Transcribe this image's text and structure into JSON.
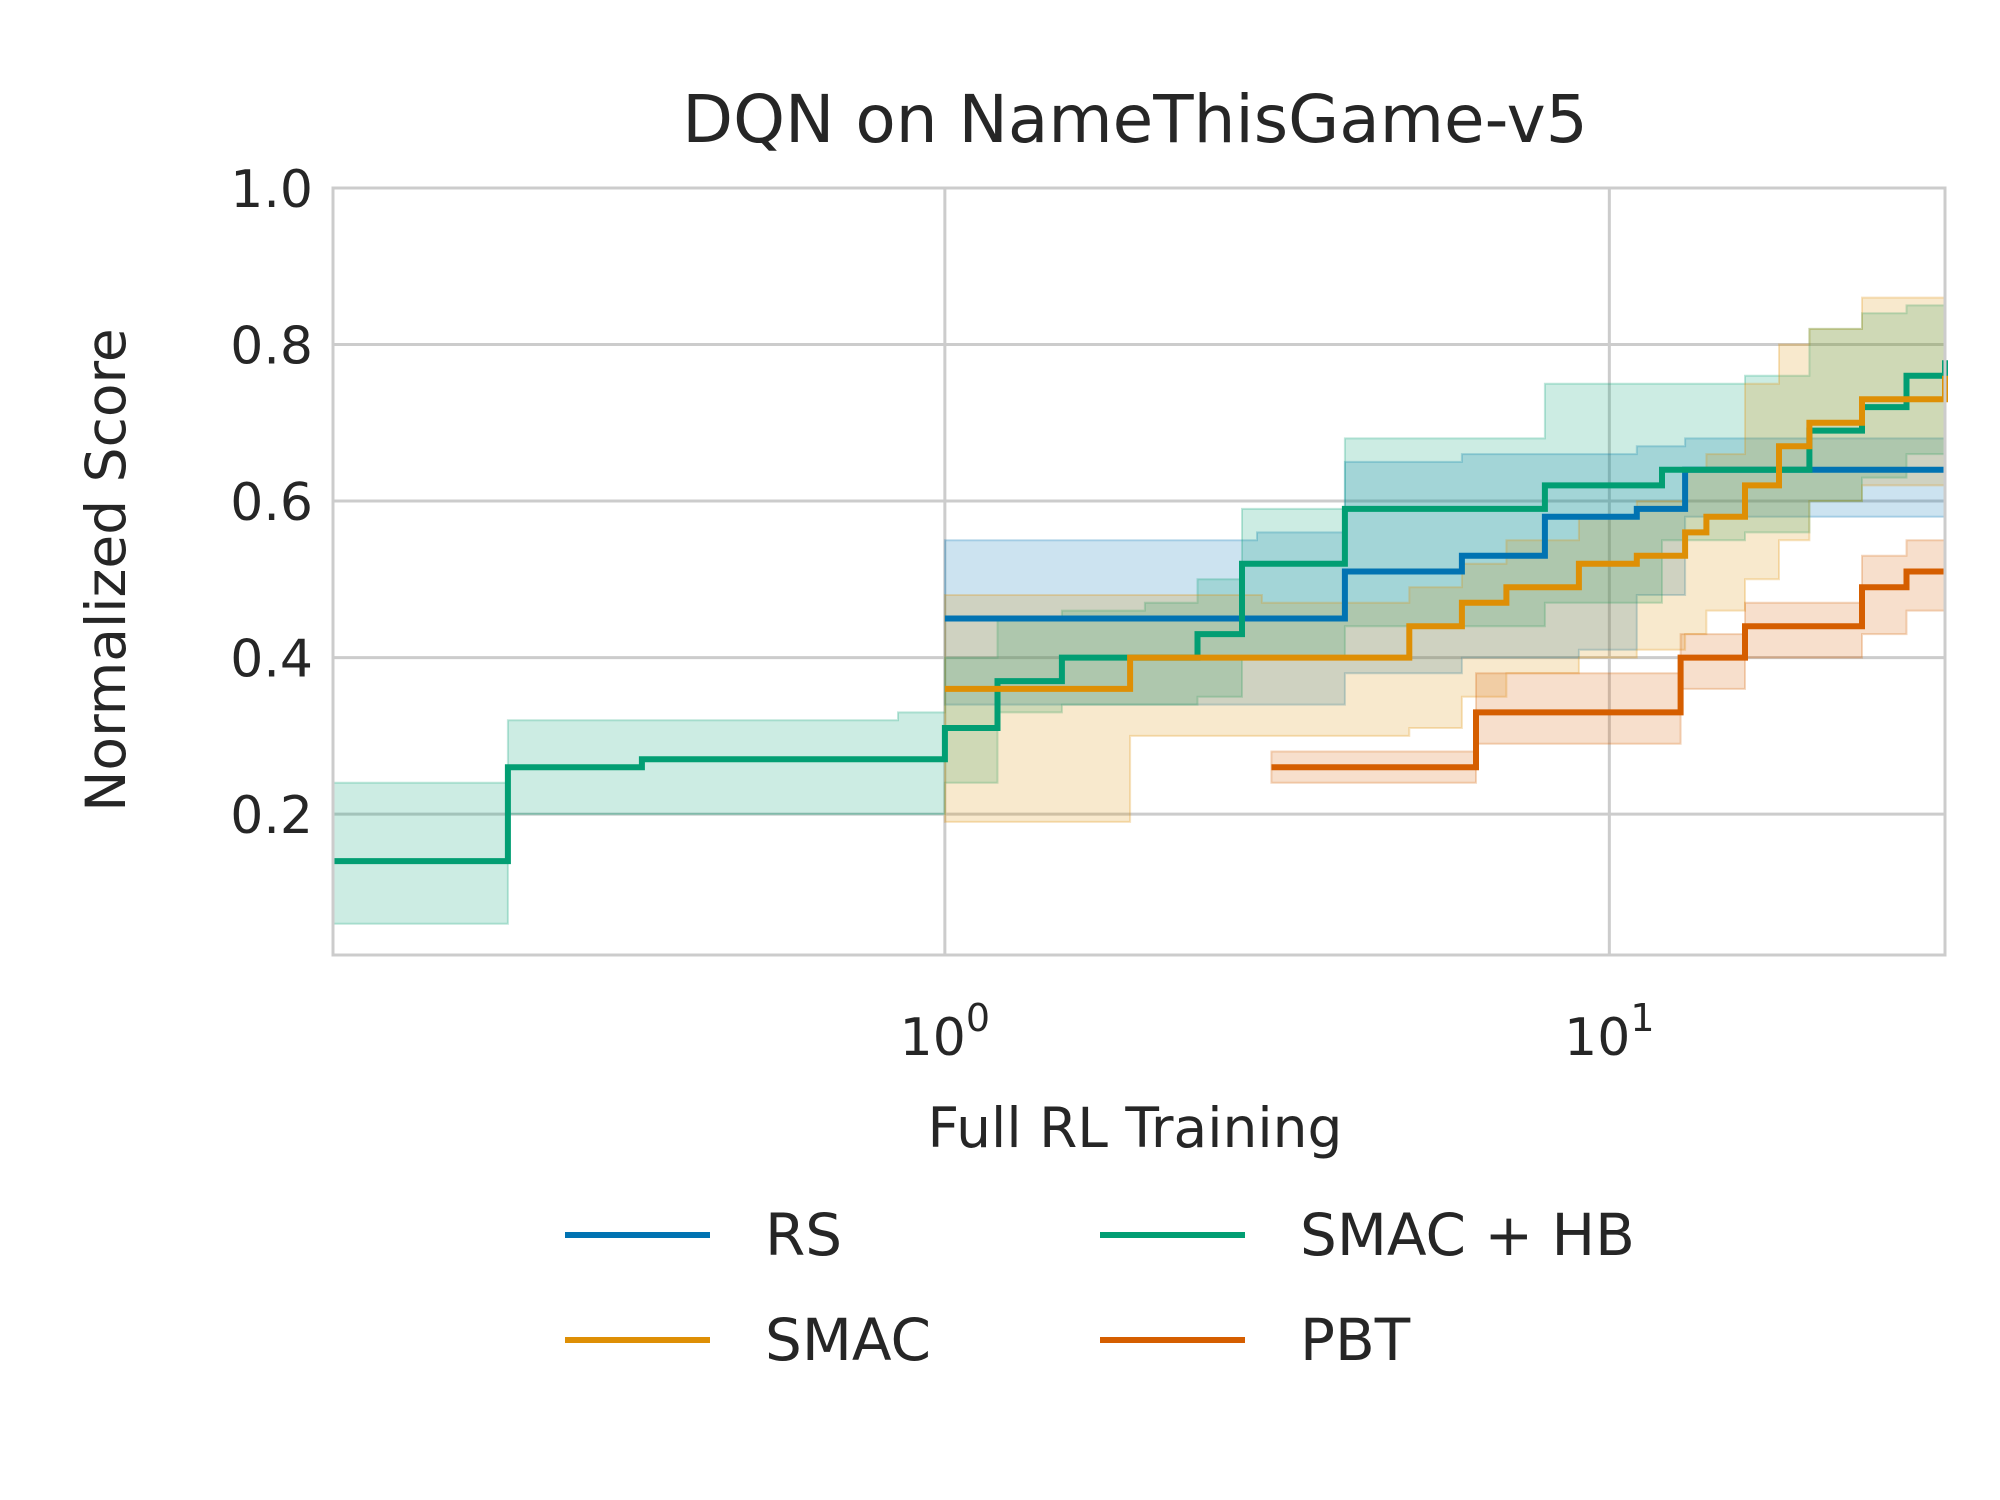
{
  "chart_data": {
    "type": "line",
    "title": "DQN on NameThisGame-v5",
    "xlabel": "Full RL Training",
    "ylabel": "Normalized Score",
    "xscale": "log",
    "xlim": [
      0.12,
      32
    ],
    "ylim": [
      0.02,
      1.0
    ],
    "grid": true,
    "legend_position": "below",
    "y_ticks": [
      "0.2",
      "0.4",
      "0.6",
      "0.8",
      "1.0"
    ],
    "y_tick_values": [
      0.2,
      0.4,
      0.6,
      0.8,
      1.0
    ],
    "x_ticks": [
      {
        "value": 1,
        "base": "10",
        "exp": "0"
      },
      {
        "value": 10,
        "base": "10",
        "exp": "1"
      }
    ],
    "series": [
      {
        "name": "RS",
        "color": "#0173b2",
        "x": [
          1.0,
          2.95,
          4.0,
          6.0,
          8.0,
          9.0,
          11.0,
          13.0,
          32
        ],
        "y": [
          0.45,
          0.45,
          0.51,
          0.53,
          0.58,
          0.58,
          0.59,
          0.64,
          0.64
        ],
        "band_low": [
          0.34,
          0.34,
          0.38,
          0.4,
          0.4,
          0.41,
          0.48,
          0.58,
          0.6
        ],
        "band_high": [
          0.55,
          0.56,
          0.65,
          0.66,
          0.66,
          0.66,
          0.67,
          0.68,
          0.68
        ]
      },
      {
        "name": "SMAC + HB",
        "color": "#029e73",
        "x": [
          0.12,
          0.22,
          0.35,
          0.6,
          0.85,
          1.0,
          1.2,
          1.5,
          2.0,
          2.4,
          2.8,
          4.0,
          8.0,
          12.0,
          16.0,
          20.0,
          24.0,
          28.0,
          32
        ],
        "y": [
          0.14,
          0.26,
          0.27,
          0.27,
          0.27,
          0.31,
          0.37,
          0.4,
          0.4,
          0.43,
          0.52,
          0.59,
          0.62,
          0.64,
          0.64,
          0.69,
          0.72,
          0.76,
          0.78
        ],
        "band_low": [
          0.06,
          0.2,
          0.2,
          0.2,
          0.2,
          0.24,
          0.33,
          0.34,
          0.34,
          0.35,
          0.4,
          0.44,
          0.47,
          0.55,
          0.56,
          0.6,
          0.63,
          0.66,
          0.68
        ],
        "band_high": [
          0.24,
          0.32,
          0.32,
          0.32,
          0.33,
          0.4,
          0.45,
          0.46,
          0.47,
          0.5,
          0.59,
          0.68,
          0.75,
          0.75,
          0.76,
          0.82,
          0.84,
          0.85,
          0.85
        ]
      },
      {
        "name": "SMAC",
        "color": "#de8f05",
        "x": [
          1.0,
          1.3,
          1.9,
          3.0,
          5.0,
          6.0,
          7.0,
          9.0,
          11.0,
          13.0,
          14.0,
          16.0,
          18.0,
          20.0,
          24.0,
          32
        ],
        "y": [
          0.36,
          0.36,
          0.4,
          0.4,
          0.44,
          0.47,
          0.49,
          0.52,
          0.53,
          0.56,
          0.58,
          0.62,
          0.67,
          0.7,
          0.73,
          0.76
        ],
        "band_low": [
          0.19,
          0.19,
          0.3,
          0.3,
          0.31,
          0.35,
          0.38,
          0.4,
          0.41,
          0.43,
          0.46,
          0.5,
          0.55,
          0.6,
          0.62,
          0.64
        ],
        "band_high": [
          0.48,
          0.48,
          0.48,
          0.47,
          0.49,
          0.52,
          0.55,
          0.58,
          0.6,
          0.64,
          0.66,
          0.75,
          0.8,
          0.82,
          0.86,
          0.88
        ]
      },
      {
        "name": "PBT",
        "color": "#d55e00",
        "x": [
          3.1,
          6.3,
          12.8,
          16.0,
          24.0,
          28.0,
          32
        ],
        "y": [
          0.26,
          0.33,
          0.4,
          0.44,
          0.49,
          0.51,
          0.51
        ],
        "band_low": [
          0.24,
          0.29,
          0.36,
          0.4,
          0.43,
          0.46,
          0.48
        ],
        "band_high": [
          0.28,
          0.38,
          0.43,
          0.47,
          0.53,
          0.55,
          0.56
        ]
      }
    ]
  }
}
